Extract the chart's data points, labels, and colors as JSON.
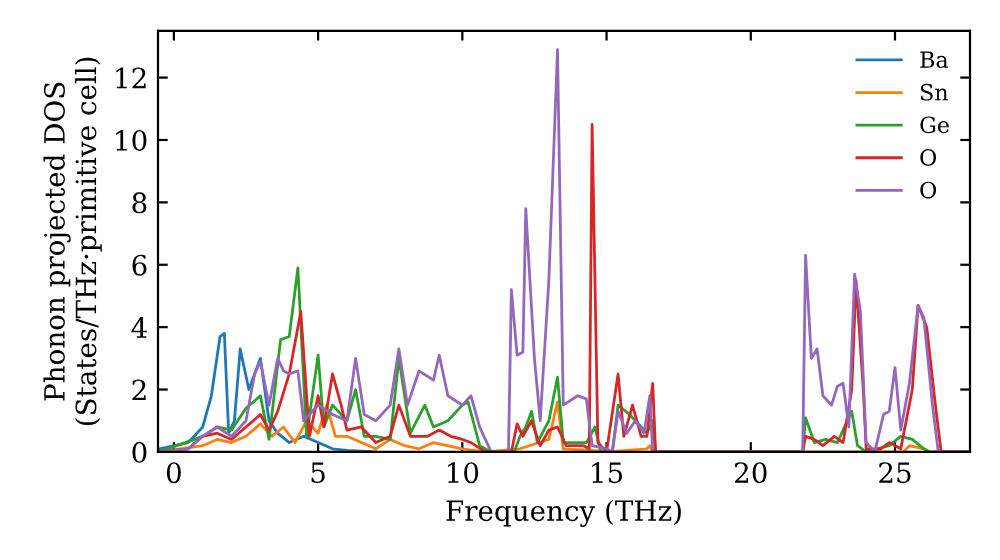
{
  "chart_data": {
    "type": "line",
    "xlabel": "Frequency (THz)",
    "ylabel": "Phonon projected DOS\n(States/THz·primitive cell)",
    "xlim": [
      -0.55,
      27.6
    ],
    "ylim": [
      0,
      13.5
    ],
    "xticks": [
      0,
      5,
      10,
      15,
      20,
      25
    ],
    "yticks": [
      0,
      2,
      4,
      6,
      8,
      10,
      12
    ],
    "grid": false,
    "legend": "top right",
    "series": [
      {
        "name": "Ba",
        "color": "#1f77b4",
        "x": [
          -0.5,
          0.5,
          1,
          1.3,
          1.6,
          1.75,
          1.9,
          2.1,
          2.3,
          2.6,
          3.0,
          3.3,
          3.6,
          4.0,
          4.5,
          5.0,
          5.5,
          6,
          7
        ],
        "values": [
          0.1,
          0.3,
          0.8,
          1.8,
          3.7,
          3.8,
          0.6,
          1.0,
          3.3,
          2.0,
          3.0,
          1.0,
          0.6,
          0.3,
          0.5,
          0.3,
          0.1,
          0.05,
          0
        ]
      },
      {
        "name": "Sn",
        "color": "#ff7f0e",
        "x": [
          -0.5,
          1,
          1.5,
          2,
          2.5,
          3.0,
          3.4,
          3.8,
          4.2,
          4.6,
          5.0,
          5.3,
          5.6,
          6,
          6.5,
          7,
          7.5,
          8,
          8.5,
          9.0,
          10,
          10.8,
          12,
          13.0,
          13.3,
          13.5,
          14.5,
          15,
          16.4,
          16.5,
          16.6,
          25.3,
          25.5,
          26,
          26.2,
          27.5
        ],
        "values": [
          0,
          0.2,
          0.4,
          0.3,
          0.5,
          0.9,
          0.5,
          0.8,
          0.3,
          1.0,
          0.6,
          1.5,
          0.5,
          0.5,
          0.3,
          0.1,
          0.4,
          0.2,
          0.1,
          0.3,
          0.1,
          0,
          0.1,
          0.4,
          1.6,
          0.1,
          0.05,
          0,
          0.1,
          0.2,
          0,
          0,
          0.2,
          0.1,
          0,
          0
        ]
      },
      {
        "name": "Ge",
        "color": "#2ca02c",
        "x": [
          -0.5,
          1,
          1.5,
          2,
          2.5,
          3.0,
          3.3,
          3.7,
          4.0,
          4.3,
          4.6,
          5.0,
          5.2,
          5.5,
          6.0,
          6.3,
          6.6,
          7,
          7.5,
          7.8,
          8.2,
          8.7,
          9,
          9.5,
          10,
          10.2,
          10.6,
          11,
          11.8,
          12.0,
          12.2,
          12.4,
          12.6,
          13.0,
          13.3,
          13.5,
          14.3,
          14.6,
          14.8,
          15.2,
          15.4,
          15.8,
          16.4,
          16.6,
          16.7,
          21.8,
          21.9,
          22.2,
          22.6,
          23.0,
          23.5,
          23.7,
          24.0,
          24.8,
          25.2,
          25.6,
          26.0,
          26.2,
          27.5
        ],
        "values": [
          0,
          0.5,
          0.8,
          0.7,
          1.4,
          1.8,
          0.4,
          3.6,
          3.7,
          5.9,
          0.5,
          3.1,
          0.8,
          1.5,
          1.0,
          2.0,
          0.5,
          0.5,
          0.4,
          3.0,
          0.6,
          1.5,
          0.8,
          1.0,
          1.5,
          1.6,
          0.2,
          0,
          0,
          0.5,
          0.8,
          1.3,
          0.3,
          1.0,
          2.4,
          0.3,
          0.3,
          0.8,
          0,
          0,
          1.5,
          1.2,
          0.6,
          1.0,
          0,
          0,
          1.1,
          0.3,
          0.4,
          0.3,
          1.3,
          0.2,
          0,
          0.2,
          0.5,
          0.4,
          0.1,
          0,
          0
        ]
      },
      {
        "name": "O",
        "color": "#d62728",
        "x": [
          -0.5,
          0.5,
          1,
          1.5,
          2,
          2.5,
          3,
          3.3,
          3.6,
          4.0,
          4.4,
          4.7,
          5.0,
          5.2,
          5.5,
          5.8,
          6.0,
          6.5,
          7,
          7.5,
          7.8,
          8.2,
          8.8,
          9.2,
          9.6,
          10,
          10.3,
          10.8,
          11.7,
          11.9,
          12.1,
          12.4,
          12.7,
          13.0,
          13.3,
          13.6,
          14.2,
          14.4,
          14.5,
          14.7,
          15,
          15.4,
          15.6,
          15.9,
          16.2,
          16.4,
          16.6,
          16.7,
          21.8,
          21.9,
          22.2,
          22.5,
          22.9,
          23.2,
          23.5,
          23.65,
          23.9,
          24.0,
          24.5,
          24.8,
          25.2,
          25.6,
          25.8,
          26.1,
          26.4,
          26.6,
          27.5
        ],
        "values": [
          0,
          0.1,
          0.5,
          0.6,
          0.4,
          0.8,
          1.2,
          0.7,
          1.3,
          2.5,
          4.5,
          0.5,
          1.8,
          0.8,
          2.5,
          1.5,
          0.7,
          0.8,
          0.3,
          0.5,
          1.5,
          0.5,
          0.5,
          0.7,
          0.5,
          0.4,
          0.3,
          0,
          0,
          0.9,
          0.5,
          1.0,
          0.2,
          0.7,
          0.8,
          0.2,
          0.2,
          0.1,
          10.5,
          0.3,
          0,
          2.5,
          0.5,
          1.5,
          0.5,
          0.5,
          2.2,
          0,
          0,
          0.5,
          0.4,
          0.2,
          0.5,
          0.3,
          2.0,
          5.5,
          2.0,
          0.1,
          0.1,
          0.3,
          0.1,
          2.0,
          4.7,
          4.0,
          1.5,
          0,
          0
        ]
      },
      {
        "name": "O",
        "color": "#9467bd",
        "x": [
          -0.5,
          0.5,
          1,
          1.5,
          2,
          2.5,
          2.8,
          3.0,
          3.3,
          3.6,
          3.8,
          4.0,
          4.3,
          4.5,
          5,
          5.5,
          6,
          6.3,
          6.6,
          7,
          7.5,
          7.8,
          8.1,
          8.5,
          9.0,
          9.2,
          9.5,
          10,
          10.3,
          10.6,
          11,
          11.6,
          11.7,
          11.9,
          12.1,
          12.2,
          12.5,
          12.7,
          13.0,
          13.3,
          13.5,
          14.0,
          14.3,
          14.5,
          15,
          15.2,
          15.4,
          15.7,
          16,
          16.3,
          16.5,
          16.6,
          21.8,
          21.9,
          22.1,
          22.3,
          22.5,
          22.8,
          23.0,
          23.2,
          23.4,
          23.6,
          23.8,
          24.0,
          24.3,
          24.6,
          24.8,
          25.0,
          25.2,
          25.5,
          25.8,
          26.0,
          26.3,
          26.5,
          27.5
        ],
        "values": [
          0,
          0.1,
          0.5,
          0.8,
          0.5,
          1.0,
          2.5,
          2.9,
          1.5,
          3.0,
          2.6,
          2.5,
          2.6,
          1.0,
          1.5,
          1.2,
          1.0,
          3.0,
          1.2,
          1.0,
          1.5,
          3.3,
          1.5,
          2.6,
          2.3,
          3.1,
          1.8,
          1.5,
          1.8,
          0.8,
          0,
          0,
          5.2,
          3.1,
          3.2,
          7.8,
          3.0,
          1.0,
          5.5,
          12.9,
          1.5,
          1.8,
          1.7,
          0.2,
          0.1,
          0,
          1.3,
          0.6,
          1.0,
          0.6,
          1.8,
          0,
          0,
          6.3,
          3.0,
          3.3,
          1.8,
          1.5,
          2.1,
          2.2,
          0.8,
          5.7,
          4.5,
          0.3,
          0,
          1.2,
          1.3,
          2.7,
          0.7,
          2.2,
          4.7,
          4.3,
          1.5,
          0,
          0
        ]
      }
    ]
  }
}
